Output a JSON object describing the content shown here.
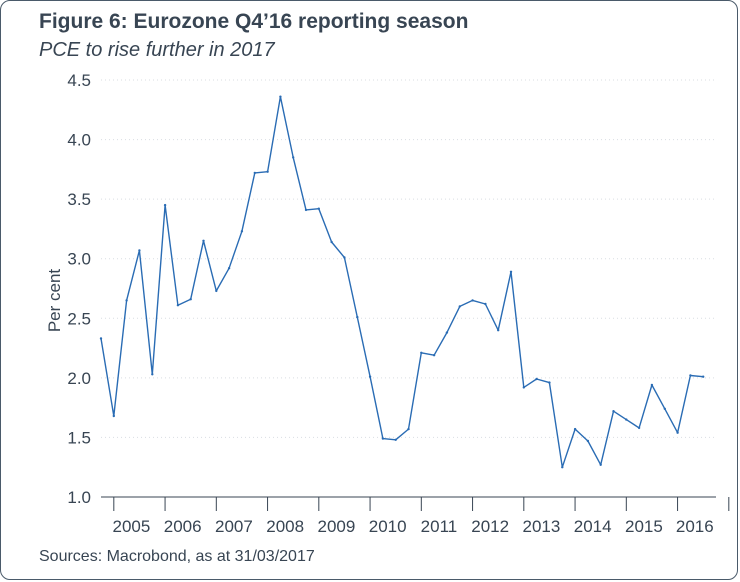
{
  "title": "Figure 6: Eurozone Q4’16 reporting season",
  "subtitle": "PCE to rise further in 2017",
  "source": "Sources: Macrobond, as at 31/03/2017",
  "colors": {
    "line": "#2a6cb4",
    "text": "#384553",
    "grid": "#d9dde2",
    "border": "#4a5a6a"
  },
  "chart_data": {
    "type": "line",
    "title": "Figure 6: Eurozone Q4’16 reporting season",
    "subtitle": "PCE to rise further in 2017",
    "xlabel": "",
    "ylabel": "Per cent",
    "ylim": [
      1.0,
      4.5
    ],
    "yticks": [
      "1.0",
      "1.5",
      "2.0",
      "2.5",
      "3.0",
      "3.5",
      "4.0",
      "4.5"
    ],
    "xticks": [
      "2005",
      "2006",
      "2007",
      "2008",
      "2009",
      "2010",
      "2011",
      "2012",
      "2013",
      "2014",
      "2015",
      "2016"
    ],
    "grid": "horizontal",
    "legend": "none",
    "x_unit": "quarter",
    "x": [
      "2004 Q4",
      "2005 Q1",
      "2005 Q2",
      "2005 Q3",
      "2005 Q4",
      "2006 Q1",
      "2006 Q2",
      "2006 Q3",
      "2006 Q4",
      "2007 Q1",
      "2007 Q2",
      "2007 Q3",
      "2007 Q4",
      "2008 Q1",
      "2008 Q2",
      "2008 Q3",
      "2008 Q4",
      "2009 Q1",
      "2009 Q2",
      "2009 Q3",
      "2009 Q4",
      "2010 Q1",
      "2010 Q2",
      "2010 Q3",
      "2010 Q4",
      "2011 Q1",
      "2011 Q2",
      "2011 Q3",
      "2011 Q4",
      "2012 Q1",
      "2012 Q2",
      "2012 Q3",
      "2012 Q4",
      "2013 Q1",
      "2013 Q2",
      "2013 Q3",
      "2013 Q4",
      "2014 Q1",
      "2014 Q2",
      "2014 Q3",
      "2014 Q4",
      "2015 Q1",
      "2015 Q2",
      "2015 Q3",
      "2015 Q4",
      "2016 Q1",
      "2016 Q2",
      "2016 Q3"
    ],
    "series": [
      {
        "values": [
          2.33,
          1.68,
          2.65,
          3.07,
          2.03,
          3.45,
          2.61,
          2.66,
          3.15,
          2.73,
          2.92,
          3.23,
          3.72,
          3.73,
          4.36,
          3.85,
          3.41,
          3.42,
          3.14,
          3.01,
          2.51,
          2.01,
          1.49,
          1.48,
          1.57,
          2.21,
          2.19,
          2.38,
          2.6,
          2.65,
          2.62,
          2.4,
          2.89,
          1.92,
          1.99,
          1.96,
          1.25,
          1.57,
          1.47,
          1.27,
          1.72,
          1.65,
          1.58,
          1.94,
          1.74,
          1.54,
          2.02,
          2.01
        ]
      }
    ]
  }
}
